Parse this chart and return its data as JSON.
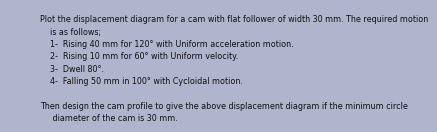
{
  "lines": [
    "Plot the displacement diagram for a cam with flat follower of width 30 mm. The required motion",
    "is as follows;",
    "1-  Rising 40 mm for 120° with Uniform acceleration motion.",
    "2-  Rising 10 mm for 60° with Uniform velocity.",
    "3-  Dwell 80°.",
    "4-  Falling 50 mm in 100° with Cycloidal motion.",
    "",
    "Then design the cam profile to give the above displacement diagram if the minimum circle",
    "     diameter of the cam is 30 mm."
  ],
  "x_positions": [
    0.085,
    0.115,
    0.115,
    0.115,
    0.115,
    0.115,
    0.085,
    0.085,
    0.085
  ],
  "bg_color": "#b0b4cc",
  "text_color": "#111111",
  "fontsize": 5.8
}
